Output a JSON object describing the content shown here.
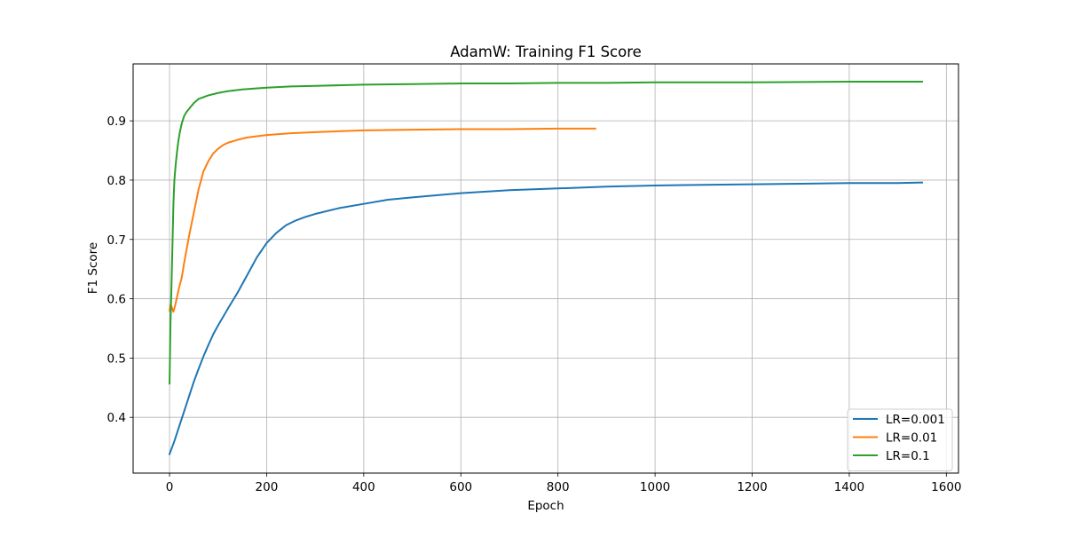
{
  "chart_data": {
    "type": "line",
    "title": "AdamW: Training F1 Score",
    "xlabel": "Epoch",
    "ylabel": "F1 Score",
    "xlim": [
      -75,
      1625
    ],
    "ylim": [
      0.306,
      0.996
    ],
    "xticks": [
      0,
      200,
      400,
      600,
      800,
      1000,
      1200,
      1400,
      1600
    ],
    "xtick_labels": [
      "0",
      "200",
      "400",
      "600",
      "800",
      "1000",
      "1200",
      "1400",
      "1600"
    ],
    "yticks": [
      0.4,
      0.5,
      0.6,
      0.7,
      0.8,
      0.9
    ],
    "ytick_labels": [
      "0.4",
      "0.5",
      "0.6",
      "0.7",
      "0.8",
      "0.9"
    ],
    "grid": true,
    "legend_position": "bottom-right",
    "series": [
      {
        "name": "LR=0.001",
        "color": "#1f77b4",
        "x": [
          0,
          10,
          20,
          30,
          40,
          50,
          60,
          70,
          80,
          90,
          100,
          120,
          140,
          160,
          180,
          200,
          220,
          240,
          260,
          280,
          300,
          350,
          400,
          450,
          500,
          600,
          700,
          800,
          900,
          1000,
          1100,
          1200,
          1300,
          1400,
          1500,
          1550
        ],
        "y": [
          0.338,
          0.36,
          0.385,
          0.41,
          0.435,
          0.46,
          0.482,
          0.503,
          0.522,
          0.54,
          0.555,
          0.583,
          0.61,
          0.64,
          0.67,
          0.694,
          0.711,
          0.724,
          0.732,
          0.738,
          0.743,
          0.753,
          0.76,
          0.767,
          0.771,
          0.778,
          0.783,
          0.786,
          0.789,
          0.791,
          0.792,
          0.793,
          0.794,
          0.795,
          0.795,
          0.796
        ]
      },
      {
        "name": "LR=0.01",
        "color": "#ff7f0e",
        "x": [
          0,
          2,
          5,
          8,
          12,
          16,
          20,
          25,
          30,
          40,
          50,
          60,
          70,
          80,
          90,
          100,
          110,
          120,
          140,
          160,
          180,
          200,
          250,
          300,
          400,
          500,
          600,
          700,
          800,
          877
        ],
        "y": [
          0.58,
          0.59,
          0.585,
          0.578,
          0.59,
          0.605,
          0.62,
          0.635,
          0.66,
          0.705,
          0.745,
          0.785,
          0.815,
          0.832,
          0.845,
          0.853,
          0.859,
          0.863,
          0.868,
          0.872,
          0.874,
          0.876,
          0.879,
          0.881,
          0.884,
          0.885,
          0.886,
          0.886,
          0.887,
          0.887
        ]
      },
      {
        "name": "LR=0.1",
        "color": "#2ca02c",
        "x": [
          0,
          2,
          4,
          6,
          8,
          10,
          12,
          15,
          18,
          21,
          25,
          30,
          35,
          40,
          50,
          60,
          70,
          80,
          100,
          120,
          150,
          200,
          250,
          300,
          400,
          500,
          600,
          700,
          800,
          900,
          1000,
          1200,
          1400,
          1550
        ],
        "y": [
          0.457,
          0.56,
          0.62,
          0.69,
          0.76,
          0.8,
          0.82,
          0.845,
          0.865,
          0.88,
          0.895,
          0.908,
          0.915,
          0.92,
          0.93,
          0.937,
          0.94,
          0.943,
          0.947,
          0.95,
          0.953,
          0.956,
          0.958,
          0.959,
          0.961,
          0.962,
          0.963,
          0.963,
          0.964,
          0.964,
          0.965,
          0.965,
          0.966,
          0.966
        ]
      }
    ]
  }
}
